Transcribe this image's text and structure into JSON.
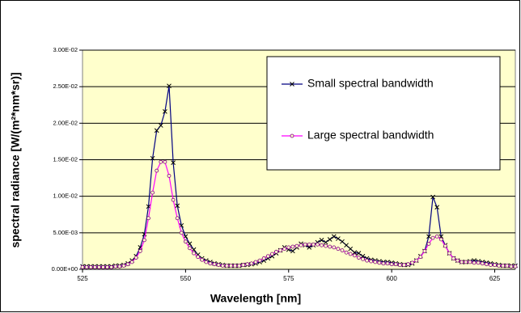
{
  "chart_data": {
    "type": "line",
    "xlabel": "Wavelength [nm]",
    "ylabel": "spectral radiance [W/(m²*nm*sr)]",
    "x": [
      525,
      526,
      527,
      528,
      529,
      530,
      531,
      532,
      533,
      534,
      535,
      536,
      537,
      538,
      539,
      540,
      541,
      542,
      543,
      544,
      545,
      546,
      547,
      548,
      549,
      550,
      551,
      552,
      553,
      554,
      555,
      556,
      557,
      558,
      559,
      560,
      561,
      562,
      563,
      564,
      565,
      566,
      567,
      568,
      569,
      570,
      571,
      572,
      573,
      574,
      575,
      576,
      577,
      578,
      579,
      580,
      581,
      582,
      583,
      584,
      585,
      586,
      587,
      588,
      589,
      590,
      591,
      592,
      593,
      594,
      595,
      596,
      597,
      598,
      599,
      600,
      601,
      602,
      603,
      604,
      605,
      606,
      607,
      608,
      609,
      610,
      611,
      612,
      613,
      614,
      615,
      616,
      617,
      618,
      619,
      620,
      621,
      622,
      623,
      624,
      625,
      626,
      627,
      628,
      629,
      630
    ],
    "series": [
      {
        "name": "Small spectral bandwidth",
        "color": "#000080",
        "marker": "x",
        "values": [
          0.0004,
          0.0004,
          0.0004,
          0.0004,
          0.0004,
          0.0004,
          0.0004,
          0.0004,
          0.0005,
          0.0005,
          0.0006,
          0.0008,
          0.0012,
          0.0018,
          0.003,
          0.0048,
          0.0086,
          0.0152,
          0.019,
          0.0197,
          0.0216,
          0.0251,
          0.0146,
          0.0087,
          0.006,
          0.0045,
          0.0035,
          0.0027,
          0.002,
          0.0015,
          0.0012,
          0.001,
          0.0008,
          0.0007,
          0.0006,
          0.0005,
          0.0005,
          0.0005,
          0.0005,
          0.0006,
          0.0006,
          0.0007,
          0.0008,
          0.001,
          0.0012,
          0.0015,
          0.0018,
          0.0022,
          0.0026,
          0.003,
          0.0027,
          0.0025,
          0.003,
          0.0035,
          0.0033,
          0.003,
          0.0033,
          0.0037,
          0.004,
          0.0037,
          0.0041,
          0.0045,
          0.0042,
          0.0038,
          0.0033,
          0.0028,
          0.0023,
          0.0022,
          0.0018,
          0.0015,
          0.0013,
          0.0012,
          0.0011,
          0.001,
          0.001,
          0.0009,
          0.0008,
          0.0007,
          0.0006,
          0.0006,
          0.0008,
          0.0012,
          0.0018,
          0.0025,
          0.0045,
          0.0099,
          0.0085,
          0.0045,
          0.0033,
          0.0022,
          0.0015,
          0.0012,
          0.001,
          0.001,
          0.0011,
          0.0012,
          0.0011,
          0.001,
          0.0009,
          0.0008,
          0.0007,
          0.0006,
          0.0005,
          0.0005,
          0.0005,
          0.0005
        ]
      },
      {
        "name": "Large spectral bandwidth",
        "color": "#ff00ff",
        "marker": "circle",
        "values": [
          0.0003,
          0.0003,
          0.0003,
          0.0003,
          0.0003,
          0.0003,
          0.0003,
          0.0003,
          0.0004,
          0.0004,
          0.0005,
          0.0007,
          0.001,
          0.0016,
          0.0025,
          0.004,
          0.007,
          0.0105,
          0.0135,
          0.0147,
          0.0147,
          0.0128,
          0.0095,
          0.007,
          0.005,
          0.0038,
          0.0029,
          0.0022,
          0.0017,
          0.0013,
          0.001,
          0.0008,
          0.0007,
          0.0006,
          0.0005,
          0.0005,
          0.0005,
          0.0005,
          0.0005,
          0.0006,
          0.0007,
          0.0008,
          0.001,
          0.0012,
          0.0015,
          0.0018,
          0.0021,
          0.0024,
          0.0026,
          0.0028,
          0.003,
          0.0031,
          0.0032,
          0.0033,
          0.0034,
          0.0034,
          0.0034,
          0.0034,
          0.0033,
          0.0032,
          0.0031,
          0.003,
          0.0028,
          0.0026,
          0.0023,
          0.0021,
          0.0019,
          0.0016,
          0.0014,
          0.0012,
          0.0011,
          0.001,
          0.0009,
          0.0008,
          0.0008,
          0.0007,
          0.0007,
          0.0006,
          0.0006,
          0.0007,
          0.0009,
          0.0012,
          0.0017,
          0.0025,
          0.0035,
          0.0043,
          0.0045,
          0.0041,
          0.0032,
          0.0022,
          0.0015,
          0.0012,
          0.001,
          0.001,
          0.001,
          0.0009,
          0.0009,
          0.0008,
          0.0007,
          0.0006,
          0.0006,
          0.0005,
          0.0005,
          0.0005,
          0.0004,
          0.0004
        ]
      }
    ],
    "xlim": [
      525,
      630
    ],
    "xticks": [
      525,
      550,
      575,
      600,
      625
    ],
    "ylim": [
      0,
      0.03
    ],
    "yticks": [
      {
        "value": 0,
        "label": "0.00E+00"
      },
      {
        "value": 0.005,
        "label": "5.00E-03"
      },
      {
        "value": 0.01,
        "label": "1.00E-02"
      },
      {
        "value": 0.015,
        "label": "1.50E-02"
      },
      {
        "value": 0.02,
        "label": "2.00E-02"
      },
      {
        "value": 0.025,
        "label": "2.50E-02"
      },
      {
        "value": 0.03,
        "label": "3.00E-02"
      }
    ],
    "grid": true,
    "plot_background": "#ffffcc",
    "legend_position": "upper right"
  }
}
